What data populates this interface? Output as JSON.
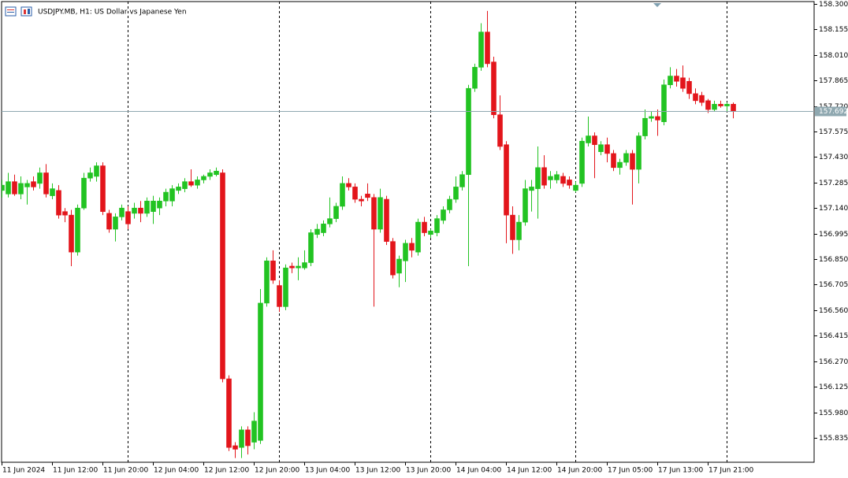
{
  "chart_data": {
    "type": "candlestick",
    "title": "USDJPY.MB, H1:  US Dollar vs Japanese Yen",
    "categories": [
      "11 Jun 2024",
      null,
      null,
      null,
      null,
      null,
      null,
      null,
      "11 Jun 12:00",
      null,
      null,
      null,
      null,
      null,
      null,
      null,
      "11 Jun 20:00",
      null,
      null,
      null,
      null,
      null,
      null,
      null,
      "12 Jun 04:00",
      null,
      null,
      null,
      null,
      null,
      null,
      null,
      "12 Jun 12:00",
      null,
      null,
      null,
      null,
      null,
      null,
      null,
      "12 Jun 20:00",
      null,
      null,
      null,
      null,
      null,
      null,
      null,
      "13 Jun 04:00",
      null,
      null,
      null,
      null,
      null,
      null,
      null,
      "13 Jun 12:00",
      null,
      null,
      null,
      null,
      null,
      null,
      null,
      "13 Jun 20:00",
      null,
      null,
      null,
      null,
      null,
      null,
      null,
      "14 Jun 04:00",
      null,
      null,
      null,
      null,
      null,
      null,
      null,
      "14 Jun 12:00",
      null,
      null,
      null,
      null,
      null,
      null,
      null,
      "14 Jun 20:00",
      null,
      null,
      null,
      null,
      null,
      null,
      null,
      "17 Jun 05:00",
      null,
      null,
      null,
      null,
      null,
      null,
      null,
      "17 Jun 13:00",
      null,
      null,
      null,
      null,
      null,
      null,
      null,
      "17 Jun 21:00",
      null,
      null,
      null,
      null
    ],
    "open": [
      157.24,
      157.22,
      157.29,
      157.22,
      157.26,
      157.29,
      157.28,
      157.34,
      157.21,
      157.24,
      157.12,
      157.1,
      156.89,
      157.14,
      157.31,
      157.32,
      157.38,
      157.11,
      157.02,
      157.09,
      157.12,
      157.11,
      157.14,
      157.11,
      157.12,
      157.14,
      157.18,
      157.18,
      157.24,
      157.25,
      157.29,
      157.27,
      157.3,
      157.32,
      157.33,
      157.34,
      156.17,
      155.79,
      155.78,
      155.88,
      155.81,
      155.82,
      156.6,
      156.84,
      156.7,
      156.58,
      156.81,
      156.8,
      156.8,
      156.83,
      156.99,
      157.0,
      157.05,
      157.08,
      157.15,
      157.28,
      157.26,
      157.19,
      157.22,
      157.2,
      157.02,
      157.19,
      156.95,
      156.77,
      156.84,
      156.94,
      156.89,
      157.06,
      156.99,
      157.0,
      157.07,
      157.13,
      157.19,
      157.26,
      157.33,
      157.82,
      157.94,
      158.14,
      157.97,
      157.67,
      157.5,
      157.1,
      156.96,
      157.06,
      157.24,
      157.25,
      157.37,
      157.3,
      157.3,
      157.32,
      157.3,
      157.24,
      157.28,
      157.51,
      157.55,
      157.46,
      157.5,
      157.45,
      157.37,
      157.4,
      157.45,
      157.36,
      157.55,
      157.65,
      157.66,
      157.63,
      157.84,
      157.89,
      157.88,
      157.86,
      157.79,
      157.78,
      157.75,
      157.7,
      157.73,
      157.72,
      157.73
    ],
    "high": [
      157.3,
      157.34,
      157.33,
      157.32,
      157.3,
      157.32,
      157.37,
      157.39,
      157.28,
      157.27,
      157.14,
      157.13,
      157.16,
      157.34,
      157.37,
      157.4,
      157.4,
      157.13,
      157.11,
      157.16,
      157.15,
      157.17,
      157.18,
      157.2,
      157.21,
      157.2,
      157.25,
      157.27,
      157.28,
      157.31,
      157.36,
      157.32,
      157.33,
      157.36,
      157.37,
      157.36,
      156.19,
      155.81,
      155.9,
      155.9,
      155.98,
      156.68,
      156.86,
      156.9,
      156.73,
      156.82,
      156.83,
      156.86,
      156.9,
      157.02,
      157.05,
      157.07,
      157.2,
      157.17,
      157.32,
      157.31,
      157.28,
      157.21,
      157.28,
      157.22,
      157.25,
      157.21,
      156.97,
      156.87,
      156.96,
      156.97,
      157.08,
      157.09,
      157.02,
      157.1,
      157.15,
      157.21,
      157.32,
      157.35,
      157.84,
      157.96,
      158.19,
      158.26,
      158.0,
      157.78,
      157.52,
      157.15,
      157.1,
      157.3,
      157.3,
      157.49,
      157.44,
      157.35,
      157.35,
      157.34,
      157.32,
      157.29,
      157.54,
      157.66,
      157.57,
      157.52,
      157.54,
      157.47,
      157.42,
      157.47,
      157.47,
      157.57,
      157.7,
      157.69,
      157.7,
      157.87,
      157.94,
      157.93,
      157.95,
      157.88,
      157.82,
      157.8,
      157.76,
      157.75,
      157.75,
      157.74,
      157.74
    ],
    "low": [
      157.2,
      157.2,
      157.21,
      157.19,
      157.16,
      157.24,
      157.25,
      157.2,
      157.19,
      157.08,
      157.06,
      156.81,
      156.87,
      157.13,
      157.29,
      157.29,
      157.1,
      157.0,
      156.95,
      157.07,
      157.02,
      157.08,
      157.06,
      157.09,
      157.05,
      157.1,
      157.15,
      157.15,
      157.22,
      157.23,
      157.26,
      157.25,
      157.28,
      157.3,
      157.32,
      156.15,
      155.76,
      155.72,
      155.72,
      155.74,
      155.77,
      155.8,
      156.58,
      156.71,
      156.55,
      156.56,
      156.77,
      156.73,
      156.79,
      156.81,
      156.97,
      156.98,
      157.03,
      157.06,
      157.13,
      157.24,
      157.17,
      157.15,
      157.18,
      156.58,
      157.0,
      156.93,
      156.74,
      156.69,
      156.72,
      156.86,
      156.87,
      156.98,
      156.97,
      156.98,
      157.05,
      157.11,
      157.17,
      157.24,
      156.81,
      157.8,
      157.92,
      157.94,
      157.65,
      157.47,
      156.94,
      156.88,
      156.9,
      157.04,
      157.12,
      157.08,
      157.25,
      157.25,
      157.28,
      157.26,
      157.25,
      157.23,
      157.26,
      157.49,
      157.31,
      157.44,
      157.4,
      157.35,
      157.33,
      157.38,
      157.16,
      157.28,
      157.53,
      157.63,
      157.55,
      157.61,
      157.82,
      157.83,
      157.8,
      157.76,
      157.73,
      157.72,
      157.68,
      157.69,
      157.71,
      157.69,
      157.65
    ],
    "close": [
      157.27,
      157.29,
      157.22,
      157.28,
      157.28,
      157.26,
      157.34,
      157.22,
      157.25,
      157.1,
      157.1,
      156.89,
      157.14,
      157.31,
      157.34,
      157.38,
      157.12,
      157.02,
      157.09,
      157.14,
      157.05,
      157.14,
      157.11,
      157.18,
      157.18,
      157.18,
      157.23,
      157.25,
      157.26,
      157.29,
      157.27,
      157.3,
      157.32,
      157.34,
      157.35,
      156.17,
      155.78,
      155.77,
      155.88,
      155.79,
      155.93,
      156.6,
      156.84,
      156.73,
      156.58,
      156.8,
      156.8,
      156.81,
      156.83,
      157.0,
      157.02,
      157.05,
      157.08,
      157.15,
      157.28,
      157.26,
      157.19,
      157.18,
      157.2,
      157.02,
      157.2,
      156.95,
      156.76,
      156.85,
      156.94,
      156.9,
      157.06,
      157.0,
      157.01,
      157.08,
      157.13,
      157.19,
      157.26,
      157.33,
      157.82,
      157.94,
      158.14,
      157.96,
      157.67,
      157.49,
      157.1,
      156.96,
      157.06,
      157.25,
      157.26,
      157.37,
      157.27,
      157.32,
      157.33,
      157.28,
      157.27,
      157.27,
      157.52,
      157.55,
      157.5,
      157.5,
      157.45,
      157.37,
      157.4,
      157.45,
      157.36,
      157.55,
      157.65,
      157.66,
      157.64,
      157.84,
      157.89,
      157.86,
      157.82,
      157.79,
      157.75,
      157.74,
      157.7,
      157.73,
      157.72,
      157.73,
      157.692
    ],
    "up_color": "#22c322",
    "down_color": "#e3151b",
    "last_price": 157.692,
    "ylim": [
      155.696,
      158.313
    ],
    "yticks": [
      {
        "value": 158.3,
        "label": "158.300"
      },
      158.155,
      {
        "value": 158.01,
        "label": "158.010"
      },
      157.865,
      {
        "value": 157.72,
        "label": "157.720"
      },
      157.575,
      {
        "value": 157.43,
        "label": "157.430"
      },
      157.285,
      {
        "value": 157.14,
        "label": "157.140"
      },
      156.995,
      {
        "value": 156.85,
        "label": "156.850"
      },
      156.705,
      {
        "value": 156.56,
        "label": "156.560"
      },
      156.415,
      {
        "value": 156.27,
        "label": "156.270"
      },
      156.125,
      {
        "value": 155.98,
        "label": "155.980"
      },
      155.835
    ]
  }
}
